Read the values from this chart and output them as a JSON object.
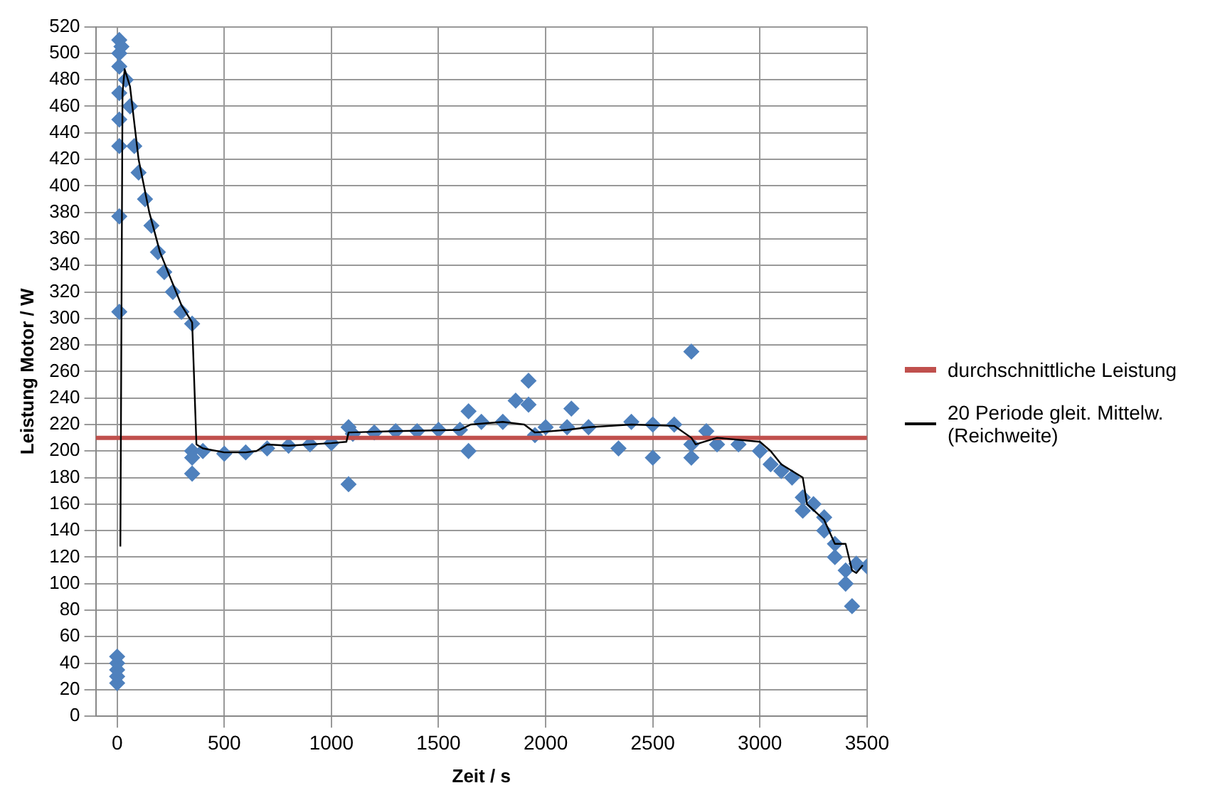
{
  "chart_data": {
    "type": "scatter",
    "xlabel": "Zeit / s",
    "ylabel": "Leistung Motor / W",
    "xlim": [
      -100,
      3500
    ],
    "xticks": [
      0,
      500,
      1000,
      1500,
      2000,
      2500,
      3000,
      3500
    ],
    "ylim": [
      0,
      520
    ],
    "yticks": [
      0,
      20,
      40,
      60,
      80,
      100,
      120,
      140,
      160,
      180,
      200,
      220,
      240,
      260,
      280,
      300,
      320,
      340,
      360,
      380,
      400,
      420,
      440,
      460,
      480,
      500,
      520
    ],
    "grid": true,
    "legend": "right",
    "marker": "diamond",
    "ref_lines": [
      {
        "axis": "y",
        "value": 210,
        "label": "durchschnittliche Leistung",
        "color": "#c0504d"
      }
    ],
    "series": [
      {
        "color": "#4f81bd",
        "x": [
          0,
          0,
          0,
          0,
          0,
          10,
          10,
          10,
          10,
          10,
          10,
          10,
          10,
          20,
          40,
          60,
          80,
          100,
          130,
          160,
          190,
          220,
          260,
          300,
          350,
          350,
          350,
          350,
          400,
          500,
          600,
          700,
          800,
          900,
          1000,
          1080,
          1080,
          1100,
          1200,
          1300,
          1400,
          1500,
          1600,
          1640,
          1640,
          1700,
          1800,
          1860,
          1920,
          1920,
          1950,
          2000,
          2100,
          2120,
          2200,
          2340,
          2400,
          2500,
          2500,
          2600,
          2680,
          2680,
          2680,
          2750,
          2800,
          2900,
          3000,
          3050,
          3100,
          3150,
          3200,
          3200,
          3250,
          3300,
          3300,
          3350,
          3350,
          3400,
          3400,
          3430,
          3450,
          3500
        ],
        "values": [
          25,
          30,
          35,
          40,
          45,
          305,
          377,
          430,
          450,
          470,
          490,
          500,
          510,
          505,
          480,
          460,
          430,
          410,
          390,
          370,
          350,
          335,
          320,
          305,
          296,
          200,
          183,
          195,
          200,
          198,
          199,
          202,
          204,
          205,
          206,
          175,
          218,
          213,
          214,
          215,
          215,
          216,
          216,
          230,
          200,
          222,
          222,
          238,
          253,
          235,
          212,
          218,
          218,
          232,
          218,
          202,
          222,
          195,
          220,
          220,
          275,
          195,
          205,
          215,
          205,
          205,
          200,
          190,
          185,
          180,
          165,
          155,
          160,
          150,
          140,
          130,
          120,
          110,
          100,
          83,
          115,
          113
        ]
      },
      {
        "type": "line",
        "name": "20 Periode gleit. Mittelw. (Reichweite)",
        "color": "#000000",
        "marker": "none",
        "x": [
          15,
          25,
          35,
          60,
          100,
          150,
          200,
          250,
          300,
          350,
          370,
          400,
          500,
          600,
          650,
          700,
          800,
          1000,
          1070,
          1080,
          1300,
          1600,
          1650,
          1800,
          1900,
          1950,
          2100,
          2200,
          2400,
          2600,
          2680,
          2700,
          2800,
          3000,
          3050,
          3100,
          3200,
          3220,
          3300,
          3350,
          3400,
          3430,
          3450,
          3480
        ],
        "values": [
          128,
          470,
          488,
          475,
          420,
          380,
          350,
          330,
          310,
          297,
          205,
          202,
          199,
          199,
          200,
          205,
          204,
          206,
          207,
          214,
          215,
          216,
          220,
          222,
          220,
          214,
          216,
          218,
          220,
          219,
          210,
          205,
          210,
          207,
          200,
          190,
          180,
          160,
          148,
          130,
          130,
          110,
          108,
          114
        ]
      }
    ]
  }
}
